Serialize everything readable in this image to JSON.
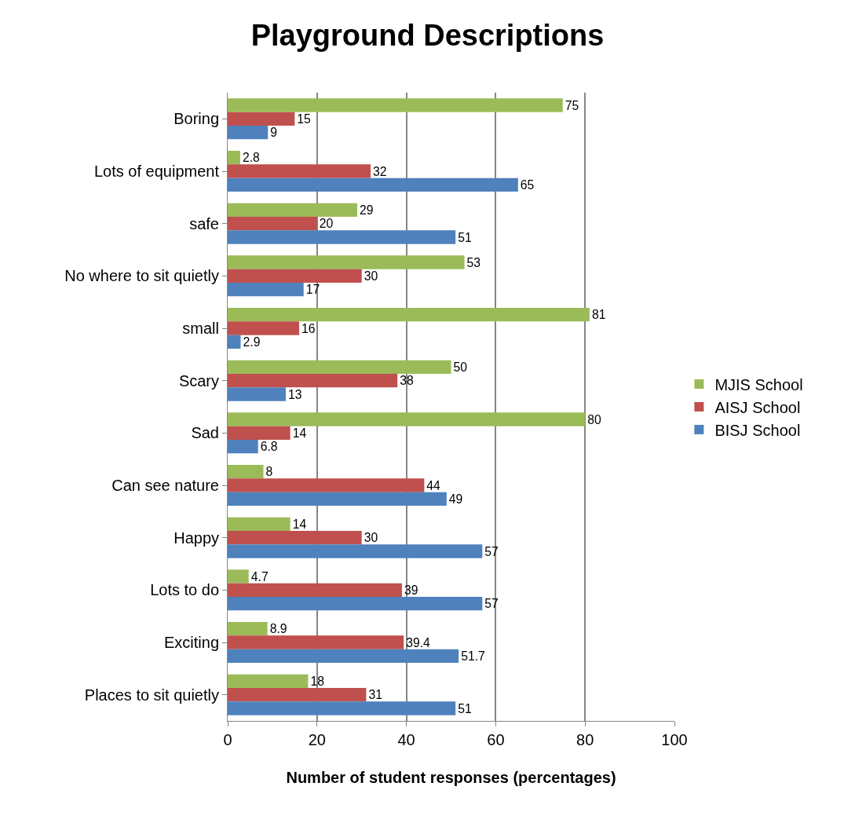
{
  "chart_data": {
    "type": "bar",
    "orientation": "horizontal",
    "title": "Playground Descriptions",
    "xlabel": "Number of student responses (percentages)",
    "categories": [
      "Boring",
      "Lots of equipment",
      "safe",
      "No where to sit quietly",
      "small",
      "Scary",
      "Sad",
      "Can see nature",
      "Happy",
      "Lots to do",
      "Exciting",
      "Places to sit quietly"
    ],
    "series": [
      {
        "name": "MJIS School",
        "color": "#9bbb59",
        "values": [
          75,
          2.8,
          29,
          53,
          81,
          50,
          80,
          8,
          14,
          4.7,
          8.9,
          18
        ]
      },
      {
        "name": "AISJ School",
        "color": "#c0504d",
        "values": [
          15,
          32,
          20,
          30,
          16,
          38,
          14,
          44,
          30,
          39,
          39.4,
          31
        ]
      },
      {
        "name": "BISJ School",
        "color": "#4f81bd",
        "values": [
          9,
          65,
          51,
          17,
          2.9,
          13,
          6.8,
          49,
          57,
          57,
          51.7,
          51
        ]
      }
    ],
    "xlim": [
      0,
      100
    ],
    "xticks": [
      0,
      20,
      40,
      60,
      80,
      100
    ],
    "grid": "x",
    "legend": "right",
    "data_labels": true
  }
}
